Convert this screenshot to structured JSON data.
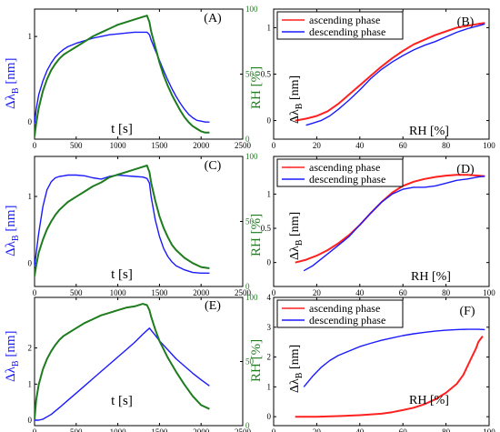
{
  "colors": {
    "red": "#ff2020",
    "blue": "#1a1aff",
    "green": "#1e7b1e"
  },
  "chart_data": [
    {
      "panel": "A",
      "type": "line",
      "xlabel": "t [s]",
      "ylabel": "Δλ",
      "ylabel_sub": "B",
      "ylabel_unit": "[nm]",
      "y2label": "RH [%]",
      "xlim": [
        0,
        2500
      ],
      "ylim": [
        -0.2,
        1.32
      ],
      "y2lim": [
        0,
        100
      ],
      "xticks": [
        0,
        500,
        1000,
        1500,
        2000,
        2500
      ],
      "yticks": [
        0,
        1
      ],
      "y2ticks": [
        0,
        50,
        100
      ],
      "series": [
        {
          "color": "blue",
          "axis": "left",
          "x": [
            0,
            20,
            50,
            100,
            150,
            200,
            250,
            300,
            350,
            400,
            500,
            600,
            700,
            800,
            900,
            1000,
            1100,
            1200,
            1300,
            1350,
            1380,
            1400,
            1450,
            1500,
            1550,
            1600,
            1650,
            1700,
            1750,
            1800,
            1850,
            1900,
            1950,
            2000,
            2050,
            2100
          ],
          "y": [
            -0.02,
            0.15,
            0.32,
            0.48,
            0.6,
            0.69,
            0.76,
            0.81,
            0.85,
            0.88,
            0.92,
            0.95,
            0.98,
            1.0,
            1.02,
            1.03,
            1.04,
            1.05,
            1.05,
            1.05,
            1.02,
            0.96,
            0.84,
            0.72,
            0.6,
            0.49,
            0.39,
            0.3,
            0.22,
            0.15,
            0.09,
            0.05,
            0.02,
            0.01,
            0.0,
            0.0
          ]
        },
        {
          "color": "green",
          "axis": "right",
          "x": [
            0,
            20,
            50,
            100,
            150,
            200,
            250,
            300,
            350,
            400,
            500,
            600,
            700,
            800,
            900,
            1000,
            1100,
            1200,
            1300,
            1350,
            1380,
            1400,
            1450,
            1500,
            1550,
            1600,
            1650,
            1700,
            1750,
            1800,
            1850,
            1900,
            1950,
            2000,
            2050,
            2100
          ],
          "y": [
            2,
            12,
            24,
            37,
            46,
            53,
            58,
            62,
            65,
            67,
            71,
            75,
            79,
            82,
            85,
            88,
            90,
            92,
            94,
            95,
            90,
            83,
            71,
            59,
            49,
            41,
            34,
            28,
            22,
            17,
            13,
            10,
            8,
            6,
            5,
            5
          ]
        }
      ]
    },
    {
      "panel": "B",
      "type": "line",
      "xlabel": "RH [%]",
      "ylabel": "Δλ",
      "ylabel_sub": "B",
      "ylabel_unit": "[nm]",
      "xlim": [
        0,
        100
      ],
      "ylim": [
        -0.2,
        1.2
      ],
      "xticks": [
        0,
        20,
        40,
        60,
        80,
        100
      ],
      "yticks": [
        0,
        0.5,
        1
      ],
      "ytick_labels": [
        "0",
        "0.5",
        "1"
      ],
      "legend": [
        "ascending phase",
        "descending phase"
      ],
      "series": [
        {
          "name": "ascending phase",
          "color": "red",
          "x": [
            10,
            15,
            20,
            25,
            30,
            35,
            40,
            45,
            50,
            55,
            60,
            65,
            70,
            75,
            80,
            85,
            90,
            95,
            98
          ],
          "y": [
            0.0,
            0.02,
            0.05,
            0.1,
            0.18,
            0.28,
            0.38,
            0.48,
            0.58,
            0.67,
            0.75,
            0.82,
            0.87,
            0.92,
            0.96,
            1.0,
            1.02,
            1.04,
            1.05
          ]
        },
        {
          "name": "descending phase",
          "color": "blue",
          "x": [
            15,
            18,
            22,
            26,
            30,
            35,
            40,
            45,
            50,
            55,
            60,
            65,
            70,
            75,
            80,
            85,
            90,
            95,
            98
          ],
          "y": [
            -0.05,
            -0.03,
            0.0,
            0.05,
            0.12,
            0.22,
            0.33,
            0.45,
            0.55,
            0.63,
            0.7,
            0.76,
            0.81,
            0.85,
            0.9,
            0.95,
            0.99,
            1.02,
            1.04
          ]
        }
      ]
    },
    {
      "panel": "C",
      "type": "line",
      "xlabel": "t [s]",
      "ylabel": "Δλ",
      "ylabel_sub": "B",
      "ylabel_unit": "[nm]",
      "y2label": "RH [%]",
      "xlim": [
        0,
        2500
      ],
      "ylim": [
        -0.35,
        1.6
      ],
      "y2lim": [
        0,
        100
      ],
      "xticks": [
        0,
        500,
        1000,
        1500,
        2000,
        2500
      ],
      "yticks": [
        0,
        1
      ],
      "y2ticks": [
        0,
        50,
        100
      ],
      "series": [
        {
          "color": "blue",
          "axis": "left",
          "x": [
            0,
            20,
            50,
            100,
            150,
            200,
            250,
            300,
            350,
            400,
            500,
            600,
            700,
            800,
            900,
            1000,
            1100,
            1200,
            1300,
            1350,
            1380,
            1400,
            1450,
            1500,
            1550,
            1600,
            1650,
            1700,
            1800,
            1900,
            2000,
            2100
          ],
          "y": [
            -0.05,
            0.15,
            0.45,
            0.85,
            1.1,
            1.22,
            1.28,
            1.3,
            1.31,
            1.32,
            1.32,
            1.31,
            1.28,
            1.26,
            1.3,
            1.32,
            1.31,
            1.3,
            1.29,
            1.27,
            1.2,
            1.0,
            0.65,
            0.4,
            0.22,
            0.1,
            0.02,
            -0.04,
            -0.1,
            -0.14,
            -0.15,
            -0.15
          ]
        },
        {
          "color": "green",
          "axis": "right",
          "x": [
            0,
            20,
            50,
            100,
            150,
            200,
            250,
            300,
            350,
            400,
            500,
            600,
            700,
            800,
            900,
            1000,
            1100,
            1200,
            1300,
            1350,
            1380,
            1400,
            1450,
            1500,
            1550,
            1600,
            1650,
            1700,
            1800,
            1900,
            2000,
            2100
          ],
          "y": [
            8,
            16,
            26,
            36,
            44,
            50,
            55,
            59,
            62,
            65,
            69,
            73,
            77,
            80,
            84,
            86,
            88,
            90,
            92,
            93,
            88,
            80,
            66,
            54,
            45,
            38,
            32,
            28,
            22,
            18,
            15,
            14
          ]
        }
      ]
    },
    {
      "panel": "D",
      "type": "line",
      "xlabel": "RH [%]",
      "ylabel": "Δλ",
      "ylabel_sub": "B",
      "ylabel_unit": "[nm]",
      "xlim": [
        0,
        100
      ],
      "ylim": [
        -0.35,
        1.55
      ],
      "xticks": [
        0,
        20,
        40,
        60,
        80,
        100
      ],
      "yticks": [
        0,
        0.5,
        1
      ],
      "ytick_labels": [
        "0",
        "0.5",
        "1"
      ],
      "legend": [
        "ascending phase",
        "descending phase"
      ],
      "series": [
        {
          "name": "ascending phase",
          "color": "red",
          "x": [
            10,
            15,
            20,
            25,
            30,
            35,
            40,
            45,
            50,
            55,
            60,
            65,
            70,
            75,
            80,
            85,
            90,
            95,
            98
          ],
          "y": [
            0.0,
            0.04,
            0.1,
            0.18,
            0.28,
            0.4,
            0.55,
            0.72,
            0.88,
            1.02,
            1.12,
            1.18,
            1.22,
            1.25,
            1.27,
            1.28,
            1.28,
            1.27,
            1.26
          ]
        },
        {
          "name": "descending phase",
          "color": "blue",
          "x": [
            14,
            18,
            22,
            26,
            30,
            35,
            40,
            45,
            50,
            55,
            60,
            65,
            70,
            75,
            80,
            85,
            90,
            95,
            98
          ],
          "y": [
            -0.12,
            -0.05,
            0.05,
            0.15,
            0.25,
            0.38,
            0.55,
            0.72,
            0.88,
            1.0,
            1.07,
            1.1,
            1.1,
            1.12,
            1.16,
            1.2,
            1.22,
            1.25,
            1.26
          ]
        }
      ]
    },
    {
      "panel": "E",
      "type": "line",
      "xlabel": "t [s]",
      "ylabel": "Δλ",
      "ylabel_sub": "B",
      "ylabel_unit": "[nm]",
      "y2label": "RH [%]",
      "xlim": [
        0,
        2500
      ],
      "ylim": [
        -0.15,
        3.4
      ],
      "y2lim": [
        0,
        100
      ],
      "xticks": [
        0,
        500,
        1000,
        1500,
        2000,
        2500
      ],
      "yticks": [
        0,
        1,
        2
      ],
      "y2ticks": [
        0,
        50,
        100
      ],
      "series": [
        {
          "color": "blue",
          "axis": "left",
          "x": [
            0,
            50,
            100,
            200,
            300,
            400,
            500,
            600,
            700,
            800,
            900,
            1000,
            1100,
            1200,
            1300,
            1380,
            1450,
            1500,
            1600,
            1700,
            1800,
            1900,
            2000,
            2100
          ],
          "y": [
            0.0,
            0.0,
            0.03,
            0.16,
            0.35,
            0.55,
            0.75,
            0.95,
            1.15,
            1.35,
            1.55,
            1.75,
            1.95,
            2.15,
            2.38,
            2.55,
            2.35,
            2.2,
            1.95,
            1.7,
            1.5,
            1.3,
            1.12,
            0.95
          ]
        },
        {
          "color": "green",
          "axis": "right",
          "x": [
            0,
            20,
            50,
            100,
            150,
            200,
            250,
            300,
            350,
            400,
            500,
            600,
            700,
            800,
            900,
            1000,
            1100,
            1200,
            1300,
            1350,
            1380,
            1400,
            1450,
            1500,
            1600,
            1700,
            1800,
            1900,
            2000,
            2100
          ],
          "y": [
            5,
            20,
            32,
            44,
            52,
            58,
            63,
            67,
            70,
            72,
            76,
            80,
            83,
            86,
            88,
            90,
            92,
            93,
            95,
            94,
            90,
            85,
            75,
            66,
            53,
            42,
            32,
            23,
            16,
            13
          ]
        }
      ]
    },
    {
      "panel": "F",
      "type": "line",
      "xlabel": "RH [%]",
      "ylabel": "Δλ",
      "ylabel_sub": "B",
      "ylabel_unit": "[nm]",
      "xlim": [
        0,
        100
      ],
      "ylim": [
        -0.3,
        4
      ],
      "xticks": [
        0,
        20,
        40,
        60,
        80,
        100
      ],
      "yticks": [
        0,
        1,
        2,
        3,
        4
      ],
      "legend": [
        "ascending phase",
        "descending phase"
      ],
      "series": [
        {
          "name": "ascending phase",
          "color": "red",
          "x": [
            10,
            20,
            30,
            40,
            50,
            55,
            60,
            65,
            70,
            75,
            80,
            85,
            88,
            90,
            92,
            94,
            95,
            96,
            97
          ],
          "y": [
            0.0,
            0.0,
            0.02,
            0.05,
            0.1,
            0.15,
            0.22,
            0.3,
            0.42,
            0.58,
            0.8,
            1.1,
            1.4,
            1.7,
            2.0,
            2.3,
            2.5,
            2.6,
            2.7
          ]
        },
        {
          "name": "descending phase",
          "color": "blue",
          "x": [
            14,
            18,
            22,
            26,
            30,
            35,
            40,
            45,
            50,
            55,
            60,
            65,
            70,
            75,
            80,
            85,
            90,
            95,
            98
          ],
          "y": [
            1.0,
            1.35,
            1.65,
            1.88,
            2.05,
            2.2,
            2.35,
            2.46,
            2.56,
            2.64,
            2.72,
            2.78,
            2.83,
            2.87,
            2.9,
            2.92,
            2.93,
            2.93,
            2.92
          ]
        }
      ]
    }
  ]
}
